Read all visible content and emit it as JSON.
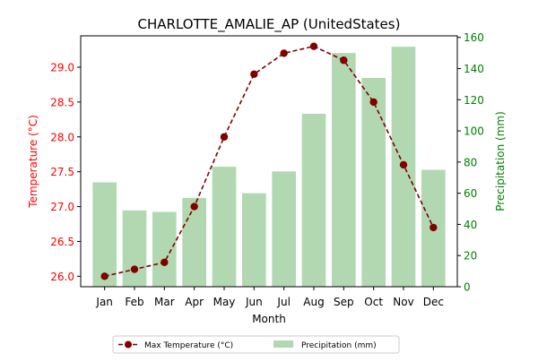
{
  "chart_data": {
    "type": "bar",
    "title": "CHARLOTTE_AMALIE_AP (UnitedStates)",
    "xlabel": "Month",
    "categories": [
      "Jan",
      "Feb",
      "Mar",
      "Apr",
      "May",
      "Jun",
      "Jul",
      "Aug",
      "Sep",
      "Oct",
      "Nov",
      "Dec"
    ],
    "y_left": {
      "label": "Temperature (°C)",
      "color": "#ff0000",
      "ylim": [
        25.85,
        29.45
      ],
      "ticks": [
        26.0,
        26.5,
        27.0,
        27.5,
        28.0,
        28.5,
        29.0
      ],
      "tick_labels": [
        "26.0",
        "26.5",
        "27.0",
        "27.5",
        "28.0",
        "28.5",
        "29.0"
      ]
    },
    "y_right": {
      "label": "Precipitation (mm)",
      "color": "#008000",
      "ylim": [
        0,
        161
      ],
      "ticks": [
        0,
        20,
        40,
        60,
        80,
        100,
        120,
        140,
        160
      ],
      "tick_labels": [
        "0",
        "20",
        "40",
        "60",
        "80",
        "100",
        "120",
        "140",
        "160"
      ]
    },
    "series": [
      {
        "name": "Max Temperature (°C)",
        "type": "line",
        "axis": "left",
        "color": "#800000",
        "values": [
          26.0,
          26.1,
          26.2,
          27.0,
          28.0,
          28.9,
          29.2,
          29.3,
          29.1,
          28.5,
          27.6,
          26.7
        ]
      },
      {
        "name": "Precipitation (mm)",
        "type": "bar",
        "axis": "right",
        "color": "#b2d8b2",
        "values": [
          67,
          49,
          48,
          57,
          77,
          60,
          74,
          111,
          150,
          134,
          154,
          75
        ]
      }
    ],
    "legend": {
      "placement": "bottom-center",
      "entries": [
        "Max Temperature (°C)",
        "Precipitation (mm)"
      ]
    },
    "grid": false
  }
}
